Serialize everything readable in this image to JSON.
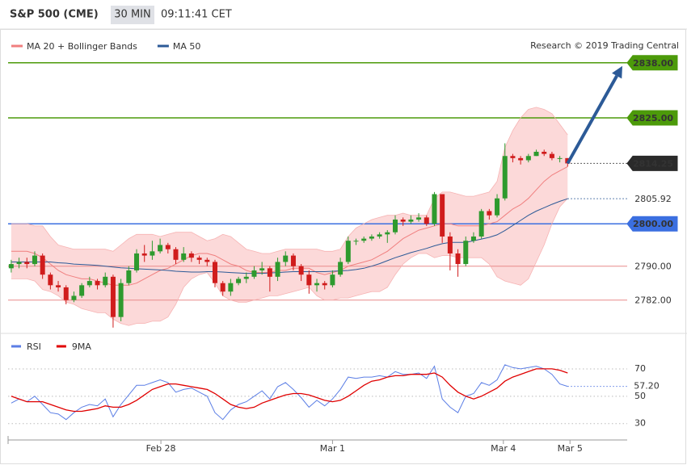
{
  "header": {
    "title": "S&P 500 (CME)",
    "interval": "30 MIN",
    "time": "09:11:41 CET"
  },
  "chart_data": [
    {
      "type": "candlestick",
      "source": "Research © 2019 Trading Central",
      "xlim": [
        -0.4,
        78.6
      ],
      "ylim": [
        2774.7,
        2845.2
      ],
      "up_color": "#2e9a2e",
      "down_color": "#d01c1c",
      "open": [
        2789.5,
        2790.5,
        2791,
        2790.5,
        2792.5,
        2788,
        2785.5,
        2785,
        2782,
        2783,
        2785.5,
        2786.5,
        2785.5,
        2787.5,
        2778,
        2786,
        2789,
        2793,
        2792.5,
        2793.5,
        2795,
        2794,
        2791.5,
        2793,
        2792,
        2791.5,
        2791,
        2786,
        2784,
        2786,
        2787,
        2787.5,
        2789,
        2789.5,
        2787.5,
        2791,
        2792.5,
        2790,
        2788,
        2785.5,
        2786,
        2785.5,
        2788,
        2791,
        2796,
        2796,
        2796.5,
        2797,
        2797.5,
        2798,
        2801,
        2800.5,
        2801,
        2801.5,
        2800,
        2807,
        2797,
        2793,
        2790.5,
        2796,
        2797,
        2803,
        2802,
        2806,
        2816,
        2815.5,
        2815,
        2816,
        2817,
        2816.5,
        2815.5,
        2815.5
      ],
      "high": [
        2791.5,
        2792,
        2792,
        2793.5,
        2793,
        2788.5,
        2786.5,
        2785.5,
        2784,
        2786,
        2787.5,
        2787,
        2788.5,
        2788,
        2787,
        2790,
        2794,
        2795,
        2796,
        2796.5,
        2795.5,
        2794.5,
        2794.5,
        2793.5,
        2792.5,
        2792,
        2791.5,
        2786.5,
        2787,
        2787.5,
        2788.5,
        2790,
        2791,
        2790,
        2792,
        2793.5,
        2793,
        2790.5,
        2789,
        2787,
        2786.5,
        2789,
        2792,
        2797,
        2796.5,
        2797,
        2797.5,
        2798,
        2798.5,
        2802,
        2801.5,
        2802,
        2802.5,
        2802,
        2807.5,
        2807,
        2798,
        2794,
        2797,
        2798,
        2803.5,
        2803.5,
        2807,
        2819,
        2816.5,
        2816,
        2816.5,
        2817.5,
        2817.5,
        2817,
        2816,
        2815.5
      ],
      "low": [
        2788.5,
        2789.5,
        2789.5,
        2790,
        2787,
        2784.5,
        2784,
        2781,
        2781.5,
        2782.5,
        2785,
        2784.5,
        2785,
        2775.5,
        2777,
        2785.5,
        2788.5,
        2791,
        2791.5,
        2793,
        2793,
        2790.5,
        2791,
        2791,
        2790.5,
        2790,
        2785,
        2783,
        2783,
        2785.5,
        2786,
        2787,
        2788,
        2784,
        2786.5,
        2790,
        2789,
        2786.5,
        2783.5,
        2784,
        2784.5,
        2785,
        2787.5,
        2790.5,
        2795,
        2795.5,
        2796,
        2796.5,
        2795.5,
        2797.5,
        2799.5,
        2800,
        2800.5,
        2799.5,
        2799.5,
        2795.5,
        2789,
        2787.5,
        2790,
        2795.5,
        2796.5,
        2801,
        2801.5,
        2805.5,
        2814.5,
        2814,
        2814.5,
        2816,
        2816,
        2815,
        2814.5,
        2813.5
      ],
      "close": [
        2790.5,
        2791,
        2790.5,
        2792.5,
        2788,
        2785.5,
        2785,
        2782,
        2783,
        2785.5,
        2786.5,
        2785.5,
        2787.5,
        2778,
        2786,
        2789,
        2793,
        2792.5,
        2793.5,
        2795,
        2794,
        2791.5,
        2793,
        2792,
        2791.5,
        2791,
        2786,
        2784,
        2786,
        2787,
        2787.5,
        2789,
        2789.5,
        2787.5,
        2791,
        2792.5,
        2790,
        2788,
        2785.5,
        2786,
        2785.5,
        2788,
        2791,
        2796,
        2796,
        2796.5,
        2797,
        2797.5,
        2798,
        2801,
        2800.5,
        2801,
        2801.5,
        2800,
        2807,
        2797,
        2793,
        2790.5,
        2796,
        2797,
        2803,
        2802,
        2806,
        2816,
        2815.5,
        2815,
        2816,
        2817,
        2816.5,
        2815.5,
        2815.5,
        2814.25
      ],
      "series": [
        {
          "name": "MA 20 + Bollinger Bands",
          "color": "#f07f7f",
          "band_color": "#fcd9d9",
          "values": [
            2793.5,
            2793.5,
            2793.5,
            2793,
            2792,
            2790.5,
            2789,
            2788,
            2787.5,
            2787,
            2787,
            2786.5,
            2786,
            2785.5,
            2785.5,
            2785.5,
            2786,
            2787,
            2788,
            2789,
            2789.5,
            2790.5,
            2791.5,
            2792.5,
            2793,
            2793,
            2792.5,
            2791.5,
            2790.5,
            2790,
            2789,
            2788.5,
            2788.5,
            2788.5,
            2789,
            2789,
            2789.5,
            2789.5,
            2789.5,
            2788.5,
            2788,
            2788.5,
            2789,
            2790,
            2790.5,
            2791,
            2791.5,
            2792.5,
            2793.5,
            2795,
            2796.5,
            2797.5,
            2798.5,
            2799,
            2799.5,
            2800,
            2800,
            2799.5,
            2799.5,
            2799.5,
            2799.5,
            2800,
            2800.5,
            2802,
            2803.5,
            2804.5,
            2806,
            2808,
            2810,
            2811.5,
            2812.5,
            2813.5
          ],
          "upper": [
            2800,
            2800,
            2800,
            2799.5,
            2799.5,
            2797,
            2795,
            2794.5,
            2794,
            2794,
            2794,
            2794,
            2794,
            2793.5,
            2795,
            2796.5,
            2797.5,
            2797.5,
            2797.5,
            2797,
            2797.5,
            2798,
            2798,
            2798,
            2797,
            2796,
            2796.5,
            2797.5,
            2797,
            2795.5,
            2794,
            2793.5,
            2793,
            2793,
            2793.5,
            2794,
            2794,
            2794,
            2794,
            2794,
            2793.5,
            2793.5,
            2794,
            2797,
            2799,
            2800,
            2801,
            2801.5,
            2802,
            2802,
            2802.5,
            2802,
            2802,
            2802,
            2806,
            2807.5,
            2807.5,
            2807,
            2806.5,
            2806.5,
            2807,
            2807.5,
            2810,
            2818,
            2822,
            2825,
            2827,
            2827.5,
            2827,
            2826,
            2823.5,
            2821
          ],
          "lower": [
            2787,
            2787,
            2787,
            2786.5,
            2784.5,
            2784,
            2783,
            2781.5,
            2781,
            2780,
            2779.5,
            2779,
            2779,
            2777.5,
            2776.5,
            2776,
            2776.5,
            2776.5,
            2777,
            2777,
            2778,
            2781,
            2785,
            2787,
            2788,
            2788.5,
            2786,
            2783,
            2782,
            2781.5,
            2781.5,
            2782,
            2782.5,
            2783,
            2783,
            2783.5,
            2784,
            2784.5,
            2785,
            2783,
            2782,
            2782,
            2782.5,
            2782.5,
            2783,
            2783.5,
            2784,
            2784,
            2785,
            2788,
            2790.5,
            2792,
            2793,
            2793,
            2792,
            2792.5,
            2792.5,
            2792,
            2792,
            2792,
            2792,
            2790.5,
            2787.5,
            2786.5,
            2786,
            2785.5,
            2787,
            2791,
            2795,
            2800,
            2804,
            2806
          ]
        },
        {
          "name": "MA 50",
          "color": "#2c5a97",
          "values": [
            2791,
            2791,
            2791,
            2791,
            2791,
            2791,
            2790.8,
            2790.7,
            2790.5,
            2790.4,
            2790.3,
            2790.2,
            2790,
            2789.8,
            2789.6,
            2789.5,
            2789.4,
            2789.3,
            2789.2,
            2789.1,
            2789,
            2788.8,
            2788.7,
            2788.6,
            2788.6,
            2788.7,
            2788.7,
            2788.6,
            2788.5,
            2788.4,
            2788.3,
            2788.3,
            2788.3,
            2788.4,
            2788.5,
            2788.6,
            2788.7,
            2788.7,
            2788.7,
            2788.7,
            2788.7,
            2788.8,
            2788.9,
            2789,
            2789.2,
            2789.5,
            2790,
            2790.6,
            2791.3,
            2792,
            2792.6,
            2793.2,
            2793.7,
            2794.2,
            2794.8,
            2795.3,
            2795.6,
            2795.6,
            2795.6,
            2796,
            2796.4,
            2796.8,
            2797.4,
            2798.4,
            2799.6,
            2800.8,
            2802,
            2803,
            2803.8,
            2804.6,
            2805.3,
            2805.92
          ]
        }
      ],
      "levels": {
        "values": [
          2838,
          2825,
          2814.25,
          2805.92,
          2800,
          2790,
          2782
        ],
        "value_labels": [
          "2838.00",
          "2825.00",
          "2814.25",
          "2805.92",
          "2800.00",
          "2790.00",
          "2782.00"
        ],
        "colors": [
          "#4c9a0a",
          "#4c9a0a",
          "#2a2a2a",
          "#2c5a97",
          "#3b6fe0",
          "#e88a8a",
          "#e88a8a"
        ],
        "line_styles": [
          "solid",
          "solid",
          "dotted",
          "dotted",
          "solid",
          "solid",
          "solid"
        ],
        "tag_styles": [
          "filled",
          "filled",
          "filled",
          "outline",
          "filled",
          "outline",
          "outline"
        ]
      },
      "arrow_color": "#2c5a97"
    },
    {
      "type": "line",
      "xlim": [
        -0.4,
        78.6
      ],
      "ylim": [
        21,
        80
      ],
      "yticks": [
        30,
        50,
        70
      ],
      "grid": true,
      "xticks": [
        {
          "value": 19.1,
          "label": "Feb 28"
        },
        {
          "value": 41,
          "label": "Mar 1"
        },
        {
          "value": 62.8,
          "label": "Mar 4"
        },
        {
          "value": 71.3,
          "label": "Mar 5"
        }
      ],
      "series": [
        {
          "name": "RSI",
          "color": "#5b7ee5",
          "values": [
            45,
            48,
            46,
            50,
            44,
            38,
            37,
            33,
            38,
            42,
            44,
            43,
            48,
            35,
            44,
            51,
            58,
            58,
            60,
            62,
            60,
            53,
            55,
            56,
            53,
            50,
            38,
            33,
            40,
            44,
            46,
            50,
            54,
            48,
            57,
            60,
            55,
            49,
            42,
            47,
            43,
            48,
            55,
            64,
            63,
            64,
            64,
            65,
            64,
            68,
            66,
            66,
            67,
            63,
            72,
            48,
            42,
            38,
            50,
            52,
            60,
            58,
            62,
            73,
            71,
            70,
            71,
            72,
            70,
            66,
            59,
            57.2
          ],
          "last_label": "57.20"
        },
        {
          "name": "9MA",
          "color": "#e00000",
          "values": [
            50,
            48,
            46,
            46,
            46,
            44,
            42,
            40,
            39,
            39,
            40,
            41,
            43,
            42,
            42,
            44,
            47,
            51,
            55,
            57,
            59,
            59,
            58,
            57,
            56,
            55,
            52,
            48,
            44,
            42,
            41,
            42,
            45,
            47,
            49,
            51,
            52,
            52,
            51,
            49,
            47,
            46,
            47,
            50,
            54,
            58,
            61,
            62,
            64,
            65,
            65,
            66,
            66,
            66,
            67,
            64,
            58,
            53,
            50,
            48,
            50,
            53,
            56,
            61,
            64,
            66,
            68,
            70,
            70,
            70,
            69,
            67
          ]
        }
      ]
    }
  ]
}
